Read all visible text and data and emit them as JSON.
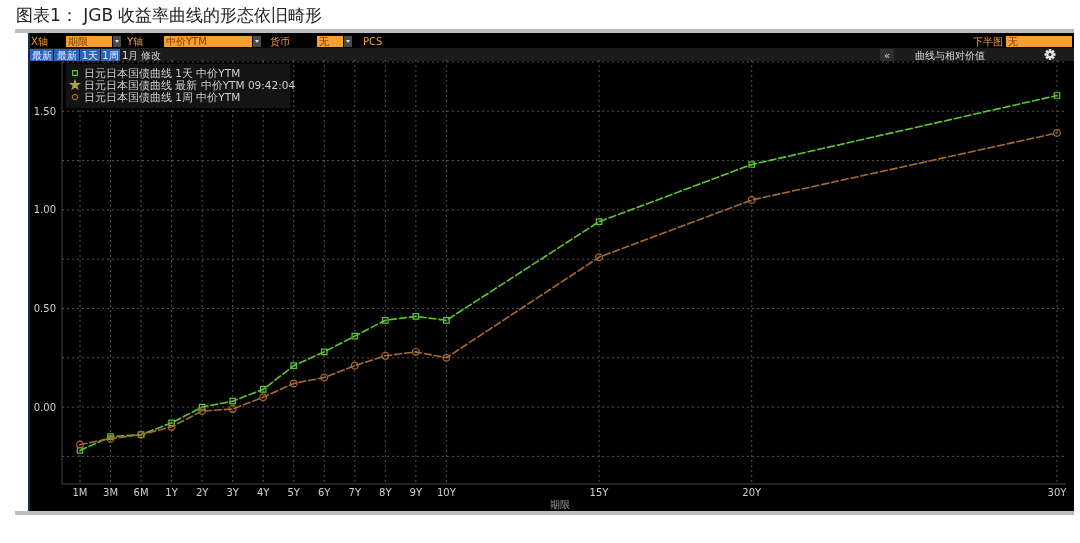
{
  "chart_data": {
    "type": "line",
    "title": "图表1： JGB 收益率曲线的形态依旧畸形",
    "xlabel": "期限",
    "categories": [
      "1M",
      "3M",
      "6M",
      "1Y",
      "2Y",
      "3Y",
      "4Y",
      "5Y",
      "6Y",
      "7Y",
      "8Y",
      "9Y",
      "10Y",
      null,
      null,
      null,
      null,
      "15Y",
      null,
      null,
      null,
      null,
      "20Y",
      null,
      null,
      null,
      null,
      null,
      null,
      null,
      null,
      null,
      "30Y"
    ],
    "ylim": [
      -0.39,
      1.76
    ],
    "yticks": [
      {
        "value": -0.25,
        "label": null
      },
      {
        "value": 0,
        "label": "0.00"
      },
      {
        "value": 0.25,
        "label": null
      },
      {
        "value": 0.5,
        "label": "0.50"
      },
      {
        "value": 0.75,
        "label": null
      },
      {
        "value": 1,
        "label": "1.00"
      },
      {
        "value": 1.25,
        "label": null
      },
      {
        "value": 1.5,
        "label": "1.50"
      },
      {
        "value": 1.75,
        "label": null
      }
    ],
    "series": [
      {
        "name": "日元日本国债曲线 1天 中价YTM",
        "color": "#5cc832",
        "marker": "square",
        "values": [
          -0.22,
          -0.15,
          -0.14,
          -0.08,
          0.0,
          0.03,
          0.09,
          0.21,
          0.28,
          0.36,
          0.44,
          0.46,
          0.44,
          null,
          null,
          null,
          null,
          0.94,
          null,
          null,
          null,
          null,
          1.23,
          null,
          null,
          null,
          null,
          null,
          null,
          null,
          null,
          null,
          1.58
        ]
      },
      {
        "name": "日元日本国债曲线 最新 中价YTM 09:42:04",
        "color": "#b8a040",
        "marker": "star",
        "values": [
          null,
          null,
          null,
          null,
          null,
          null,
          null,
          null,
          null,
          null,
          null,
          null,
          null,
          null,
          null,
          null,
          null,
          null,
          null,
          null,
          null,
          null,
          null,
          null,
          null,
          null,
          null,
          null,
          null,
          null,
          null,
          null,
          null
        ]
      },
      {
        "name": "日元日本国债曲线 1周 中价YTM",
        "color": "#a86a2e",
        "marker": "circle",
        "values": [
          -0.19,
          -0.16,
          -0.14,
          -0.1,
          -0.02,
          -0.01,
          0.05,
          0.12,
          0.15,
          0.21,
          0.26,
          0.28,
          0.25,
          null,
          null,
          null,
          null,
          0.76,
          null,
          null,
          null,
          null,
          1.05,
          null,
          null,
          null,
          null,
          null,
          null,
          null,
          null,
          null,
          1.39
        ]
      }
    ],
    "line_style": "dashed",
    "grid": true,
    "legend": "top left",
    "annotations": [
      "X轴",
      "期限",
      "Y轴",
      "中价YTM",
      "货币",
      "无",
      "PCS",
      "下半图",
      "无",
      "最新",
      "最新",
      "1天",
      "1周",
      "1月",
      "修改",
      "«",
      "曲线与相对价值"
    ]
  }
}
